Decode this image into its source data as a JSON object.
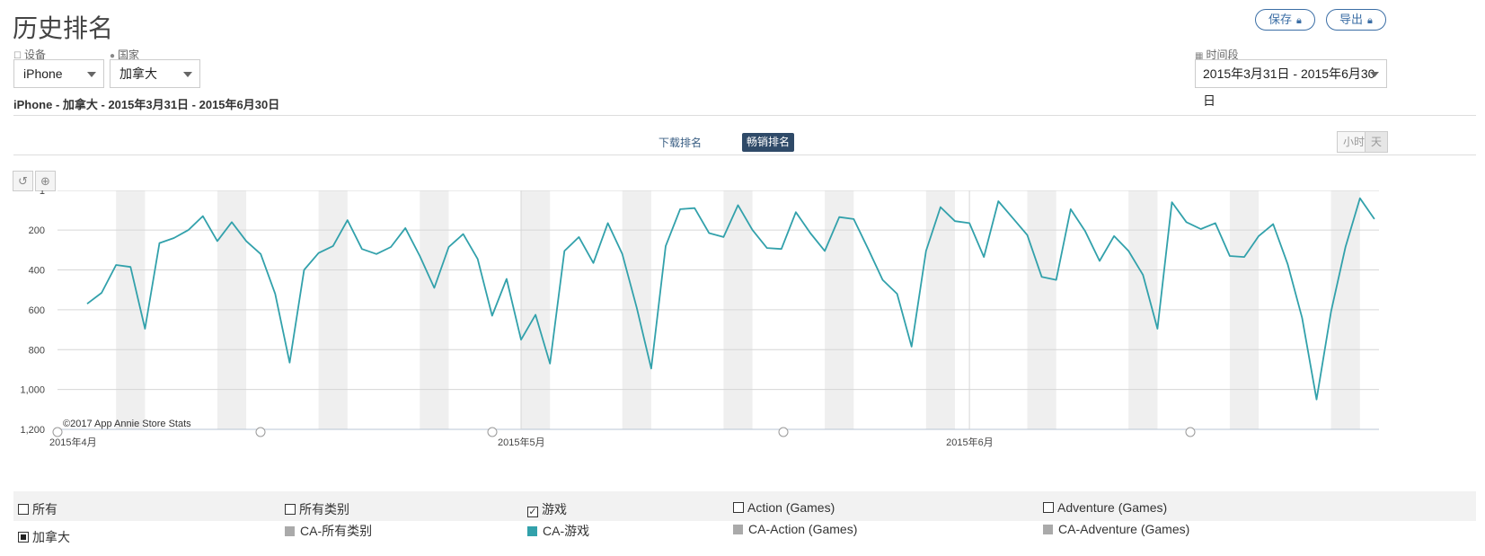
{
  "page": {
    "title": "历史排名",
    "subtitle": "iPhone - 加拿大 - 2015年3月31日 - 2015年6月30日"
  },
  "header": {
    "save_label": "保存",
    "export_label": "导出",
    "lock_icon": "lock-icon"
  },
  "filters": {
    "device_label": "设备",
    "device_value": "iPhone",
    "country_label": "国家",
    "country_value": "加拿大",
    "period_label": "时间段",
    "period_value": "2015年3月31日 - 2015年6月30日"
  },
  "toolbar": {
    "download_rank": "下载排名",
    "grossing_rank": "畅销排名",
    "hour": "小时",
    "day": "天",
    "undo_icon": "undo-icon",
    "zoom_icon": "zoom-icon"
  },
  "chart_data": {
    "type": "line",
    "title": "",
    "xlabel": "",
    "ylabel": "",
    "y_inverted": true,
    "ylim": [
      1,
      1200
    ],
    "y_ticks": [
      "1",
      "200",
      "400",
      "600",
      "800",
      "1,000",
      "1,200"
    ],
    "x_ticks": [
      "2015年4月",
      "2015年5月",
      "2015年6月"
    ],
    "grid": true,
    "weekend_shading": true,
    "watermark": "©2017 App Annie Store Stats",
    "series": [
      {
        "color": "#32a1ab",
        "values": [
          570,
          515,
          375,
          385,
          695,
          265,
          240,
          200,
          130,
          255,
          160,
          255,
          320,
          520,
          865,
          400,
          315,
          280,
          150,
          295,
          320,
          285,
          190,
          330,
          490,
          285,
          220,
          345,
          630,
          445,
          750,
          625,
          870,
          305,
          235,
          365,
          165,
          320,
          590,
          895,
          280,
          95,
          90,
          215,
          235,
          75,
          200,
          290,
          295,
          110,
          215,
          305,
          135,
          145,
          295,
          450,
          520,
          785,
          305,
          85,
          155,
          165,
          335,
          55,
          140,
          225,
          435,
          450,
          95,
          205,
          355,
          230,
          305,
          425,
          695,
          60,
          160,
          195,
          165,
          330,
          335,
          230,
          170,
          370,
          640,
          1050,
          610,
          285,
          40,
          145
        ]
      }
    ]
  },
  "legend": {
    "row1": [
      {
        "label": "所有",
        "checked": false
      },
      {
        "label": "所有类别",
        "checked": false
      },
      {
        "label": "游戏",
        "checked": true
      },
      {
        "label": "Action (Games)",
        "checked": false
      },
      {
        "label": "Adventure (Games)",
        "checked": false
      }
    ],
    "row2": [
      {
        "label": "加拿大",
        "filled": true
      },
      {
        "label": "CA-所有类别",
        "color": "#aaaaaa"
      },
      {
        "label": "CA-游戏",
        "color": "#32a1ab"
      },
      {
        "label": "CA-Action (Games)",
        "color": "#aaaaaa"
      },
      {
        "label": "CA-Adventure (Games)",
        "color": "#aaaaaa"
      }
    ]
  }
}
